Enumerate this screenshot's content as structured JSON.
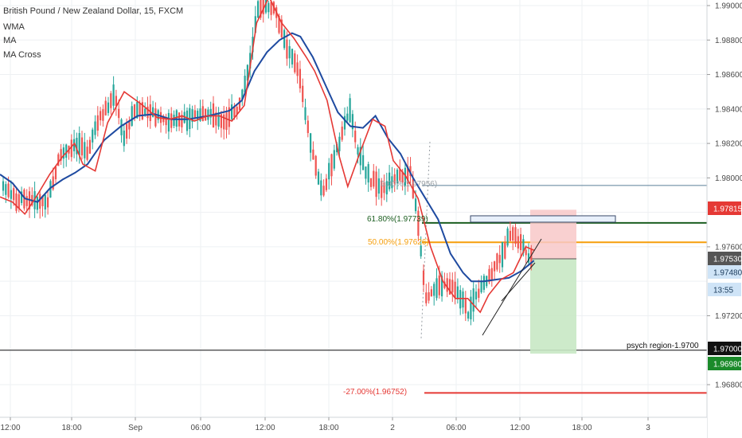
{
  "header": {
    "symbol": "British Pound / New Zealand Dollar, 15, FXCM",
    "indicators": [
      "WMA",
      "MA",
      "MA Cross"
    ]
  },
  "colors": {
    "bull": "#26a69a",
    "bear": "#ef5350",
    "wma": "#e53935",
    "ma": "#1e4aa0",
    "fib618": "#1b5e20",
    "fib50": "#f59e0b",
    "fib27": "#e53935",
    "current": "#2f9be0",
    "level19798": "#5a7f99"
  },
  "price_axis": {
    "labels": [
      "1.99000",
      "1.98800",
      "1.98600",
      "1.98400",
      "1.98200",
      "1.98000",
      "1.97600",
      "1.97200",
      "1.96800"
    ],
    "tags": [
      {
        "text": "1.97815",
        "bg": "#e53935",
        "fg": "#ffffff"
      },
      {
        "text": "1.97530",
        "bg": "#555555",
        "fg": "#ffffff"
      },
      {
        "text": "1.97480",
        "bg": "#cfe4f7",
        "fg": "#1a3a5a"
      },
      {
        "text": "13:55",
        "bg": "#cfe4f7",
        "fg": "#1a3a5a"
      },
      {
        "text": "1.97000",
        "bg": "#111111",
        "fg": "#ffffff"
      },
      {
        "text": "1.96980",
        "bg": "#1b8a2a",
        "fg": "#ffffff"
      }
    ]
  },
  "time_axis": {
    "labels": [
      "12:00",
      "18:00",
      "Sep",
      "06:00",
      "12:00",
      "18:00",
      "2",
      "06:00",
      "12:00",
      "18:00",
      "3"
    ]
  },
  "annotations": {
    "fib_618": "61.80%(1.97739)",
    "fib_50": "50.00%(1.97626)",
    "fib_27": "-27.00%(1.96752)",
    "fib_top": "0.00%(1.97956)",
    "psych": "psych region-1.9700"
  },
  "chart_data": {
    "type": "candlestick",
    "title": "British Pound / New Zealand Dollar, 15, FXCM",
    "interval": "15",
    "ylim": [
      1.966,
      1.991
    ],
    "x_tick_labels": [
      "12:00",
      "18:00",
      "Sep",
      "06:00",
      "12:00",
      "18:00",
      "2",
      "06:00",
      "12:00",
      "18:00",
      "3"
    ],
    "series": [
      {
        "name": "WMA",
        "path_points": [
          [
            1.9789,
            0
          ],
          [
            1.9786,
            6
          ],
          [
            1.9779,
            12
          ],
          [
            1.979,
            18
          ],
          [
            1.9802,
            24
          ],
          [
            1.9812,
            30
          ],
          [
            1.982,
            36
          ],
          [
            1.9808,
            40
          ],
          [
            1.9804,
            46
          ],
          [
            1.9832,
            52
          ],
          [
            1.985,
            60
          ],
          [
            1.9843,
            68
          ],
          [
            1.9835,
            76
          ],
          [
            1.9834,
            82
          ],
          [
            1.9836,
            88
          ],
          [
            1.9833,
            94
          ],
          [
            1.9836,
            100
          ],
          [
            1.9836,
            106
          ],
          [
            1.9833,
            112
          ],
          [
            1.9842,
            118
          ],
          [
            1.989,
            124
          ],
          [
            1.9905,
            130
          ],
          [
            1.989,
            136
          ],
          [
            1.9881,
            142
          ],
          [
            1.987,
            148
          ],
          [
            1.9862,
            152
          ],
          [
            1.9845,
            158
          ],
          [
            1.9812,
            164
          ],
          [
            1.9795,
            168
          ],
          [
            1.9815,
            174
          ],
          [
            1.9834,
            180
          ],
          [
            1.983,
            186
          ],
          [
            1.981,
            190
          ],
          [
            1.9801,
            196
          ],
          [
            1.9788,
            202
          ],
          [
            1.976,
            208
          ],
          [
            1.974,
            214
          ],
          [
            1.973,
            220
          ],
          [
            1.973,
            226
          ],
          [
            1.9722,
            232
          ],
          [
            1.9732,
            236
          ],
          [
            1.9741,
            242
          ],
          [
            1.9745,
            248
          ],
          [
            1.976,
            254
          ],
          [
            1.9758,
            258
          ]
        ]
      },
      {
        "name": "MA",
        "path_points": [
          [
            1.9802,
            0
          ],
          [
            1.9797,
            6
          ],
          [
            1.9788,
            12
          ],
          [
            1.9786,
            18
          ],
          [
            1.9794,
            24
          ],
          [
            1.9799,
            30
          ],
          [
            1.9803,
            36
          ],
          [
            1.9808,
            42
          ],
          [
            1.9822,
            50
          ],
          [
            1.983,
            58
          ],
          [
            1.9836,
            66
          ],
          [
            1.9837,
            74
          ],
          [
            1.9834,
            82
          ],
          [
            1.9834,
            90
          ],
          [
            1.9836,
            100
          ],
          [
            1.9839,
            110
          ],
          [
            1.9845,
            116
          ],
          [
            1.9862,
            122
          ],
          [
            1.9873,
            128
          ],
          [
            1.988,
            134
          ],
          [
            1.9884,
            140
          ],
          [
            1.9882,
            144
          ],
          [
            1.987,
            150
          ],
          [
            1.9854,
            156
          ],
          [
            1.9838,
            162
          ],
          [
            1.983,
            168
          ],
          [
            1.9829,
            174
          ],
          [
            1.9836,
            180
          ],
          [
            1.9823,
            186
          ],
          [
            1.9814,
            192
          ],
          [
            1.98,
            198
          ],
          [
            1.9788,
            204
          ],
          [
            1.9776,
            210
          ],
          [
            1.9756,
            216
          ],
          [
            1.9745,
            222
          ],
          [
            1.974,
            226
          ],
          [
            1.974,
            232
          ],
          [
            1.9741,
            238
          ],
          [
            1.9742,
            244
          ],
          [
            1.9746,
            250
          ],
          [
            1.9752,
            256
          ]
        ]
      }
    ],
    "levels": [
      {
        "label": "0.00%(1.97956)",
        "value": 1.97956
      },
      {
        "label": "61.80%(1.97739)",
        "value": 1.97739
      },
      {
        "label": "50.00%(1.97626)",
        "value": 1.97626
      },
      {
        "label": "psych region-1.9700",
        "value": 1.97
      },
      {
        "label": "-27.00%(1.96752)",
        "value": 1.96752
      }
    ],
    "position": {
      "entry": 1.9753,
      "stop": 1.97815,
      "target": 1.9698
    },
    "grid": true
  }
}
